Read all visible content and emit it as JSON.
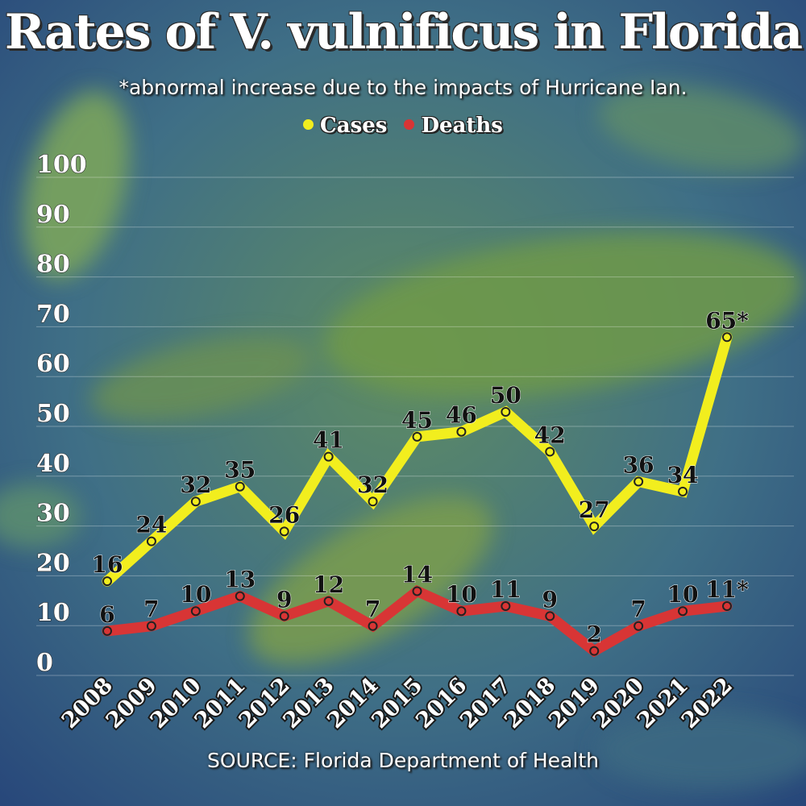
{
  "chart_data": {
    "type": "line",
    "title": "Rates of V. vulnificus in Florida",
    "subtitle": "*abnormal increase due to the impacts of Hurricane Ian.",
    "source": "SOURCE: Florida Department of Health",
    "xlabel": "",
    "ylabel": "",
    "ylim": [
      0,
      100
    ],
    "yticks": [
      0,
      10,
      20,
      30,
      40,
      50,
      60,
      70,
      80,
      90,
      100
    ],
    "grid": true,
    "legend_position": "top-center",
    "categories": [
      "2008",
      "2009",
      "2010",
      "2011",
      "2012",
      "2013",
      "2014",
      "2015",
      "2016",
      "2017",
      "2018",
      "2019",
      "2020",
      "2021",
      "2022"
    ],
    "series": [
      {
        "name": "Cases",
        "color": "#f2ee1e",
        "values": [
          16,
          24,
          32,
          35,
          26,
          41,
          32,
          45,
          46,
          50,
          42,
          27,
          36,
          34,
          65
        ],
        "labels": [
          "16",
          "24",
          "32",
          "35",
          "26",
          "41",
          "32",
          "45",
          "46",
          "50",
          "42",
          "27",
          "36",
          "34",
          "65*"
        ]
      },
      {
        "name": "Deaths",
        "color": "#d83535",
        "values": [
          6,
          7,
          10,
          13,
          9,
          12,
          7,
          14,
          10,
          11,
          9,
          2,
          7,
          10,
          11
        ],
        "labels": [
          "6",
          "7",
          "10",
          "13",
          "9",
          "12",
          "7",
          "14",
          "10",
          "11",
          "9",
          "2",
          "7",
          "10",
          "11*"
        ]
      }
    ]
  }
}
